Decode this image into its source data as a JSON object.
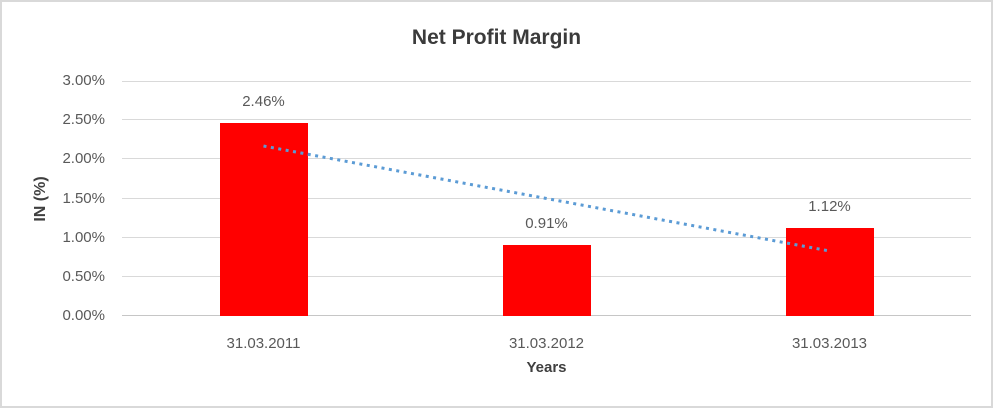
{
  "window": {
    "background": "#ffffff",
    "border_color": "#d9d9d9"
  },
  "chart_data": {
    "type": "bar",
    "title": "Net Profit Margin",
    "categories": [
      "31.03.2011",
      "31.03.2012",
      "31.03.2013"
    ],
    "values": [
      2.46,
      0.91,
      1.12
    ],
    "data_labels": [
      "2.46%",
      "0.91%",
      "1.12%"
    ],
    "xlabel": "Years",
    "ylabel": "IN (%)",
    "ylim": [
      0,
      3
    ],
    "ytick_values": [
      0,
      0.5,
      1,
      1.5,
      2,
      2.5,
      3
    ],
    "ytick_labels": [
      "0.00%",
      "0.50%",
      "1.00%",
      "1.50%",
      "2.00%",
      "2.50%",
      "3.00%"
    ],
    "grid": true,
    "legend": "none",
    "bar_color": "#ff0000",
    "gridline_color": "#d9d9d9",
    "axis_line_color": "#c6c6c6",
    "trendline": {
      "type": "linear",
      "style": "dotted",
      "color": "#5b9bd5",
      "points": [
        {
          "category_index": 0,
          "value": 2.17
        },
        {
          "category_index": 2,
          "value": 0.83
        }
      ]
    }
  }
}
